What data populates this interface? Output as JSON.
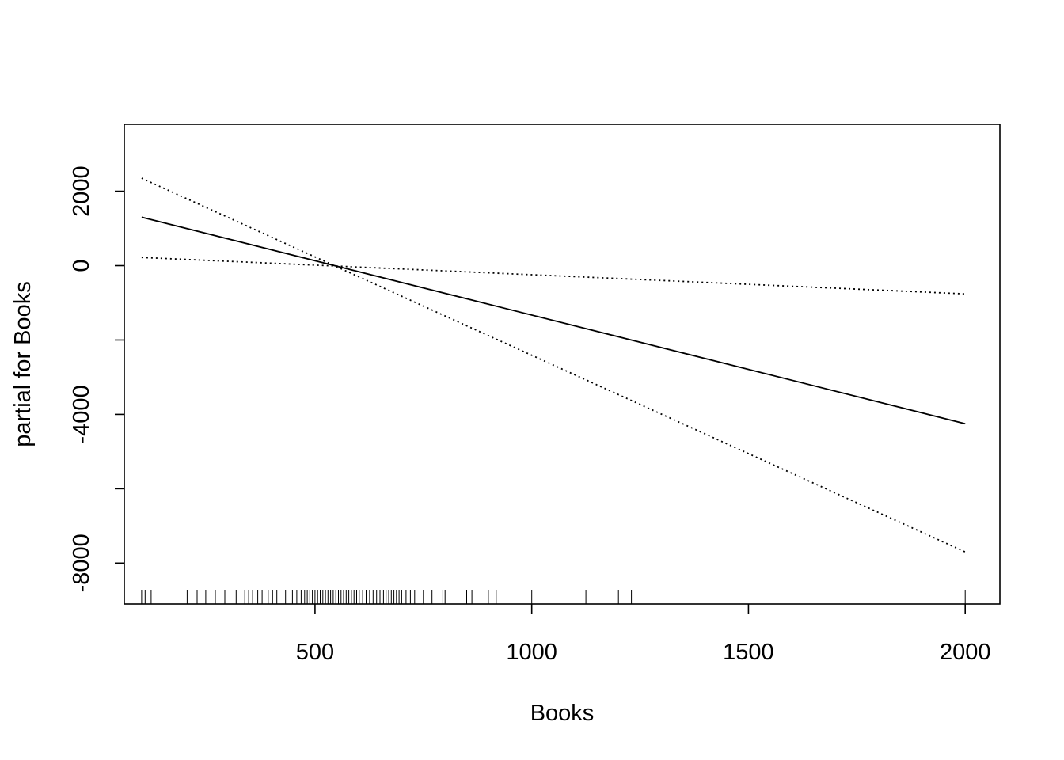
{
  "chart_data": {
    "type": "line",
    "xlabel": "Books",
    "ylabel": "partial for Books",
    "xlim": [
      60,
      2080
    ],
    "ylim": [
      -9100,
      3800
    ],
    "x_ticks": [
      500,
      1000,
      1500,
      2000
    ],
    "y_ticks": [
      -8000,
      -4000,
      0,
      2000
    ],
    "y_minor_ticks": [
      -6000,
      -2000
    ],
    "grid": false,
    "legend": "none",
    "series": [
      {
        "style": "solid",
        "x": [
          100,
          2000
        ],
        "y": [
          1300,
          -4250
        ]
      },
      {
        "style": "dotted",
        "x": [
          100,
          2000
        ],
        "y": [
          2350,
          -7700
        ]
      },
      {
        "style": "dotted",
        "x": [
          100,
          2000
        ],
        "y": [
          220,
          -760
        ]
      }
    ],
    "rug": [
      100,
      108,
      122,
      205,
      228,
      248,
      270,
      292,
      318,
      338,
      347,
      356,
      368,
      378,
      392,
      402,
      412,
      432,
      448,
      458,
      468,
      476,
      482,
      488,
      494,
      500,
      506,
      512,
      518,
      524,
      530,
      536,
      542,
      548,
      554,
      560,
      566,
      572,
      578,
      584,
      590,
      596,
      602,
      610,
      618,
      626,
      634,
      642,
      650,
      658,
      664,
      670,
      676,
      682,
      688,
      694,
      700,
      710,
      720,
      730,
      750,
      770,
      795,
      800,
      850,
      862,
      900,
      918,
      1000,
      1125,
      1200,
      1230,
      2000
    ]
  }
}
